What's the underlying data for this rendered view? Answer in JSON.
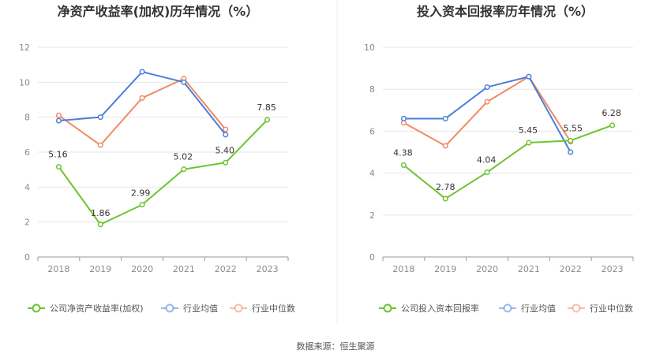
{
  "source_label": "数据来源：恒生聚源",
  "colors": {
    "company": "#6cc42f",
    "avg": "#4a7fdc",
    "median": "#f08a63"
  },
  "chart_data": [
    {
      "type": "line",
      "title": "净资产收益率(加权)历年情况（%）",
      "categories": [
        "2018",
        "2019",
        "2020",
        "2021",
        "2022",
        "2023"
      ],
      "ylim": [
        0,
        12
      ],
      "yticks": [
        "0",
        "2",
        "4",
        "6",
        "8",
        "10",
        "12"
      ],
      "grid": true,
      "legend_position": "bottom",
      "series": [
        {
          "name": "公司净资产收益率(加权)",
          "key": "company",
          "values": [
            5.16,
            1.86,
            2.99,
            5.02,
            5.4,
            7.85
          ],
          "labels": [
            "5.16",
            "1.86",
            "2.99",
            "5.02",
            "5.40",
            "7.85"
          ]
        },
        {
          "name": "行业均值",
          "key": "avg",
          "values": [
            7.8,
            8.0,
            10.6,
            10.0,
            7.0,
            null
          ]
        },
        {
          "name": "行业中位数",
          "key": "median",
          "values": [
            8.1,
            6.4,
            9.1,
            10.2,
            7.3,
            null
          ]
        }
      ]
    },
    {
      "type": "line",
      "title": "投入资本回报率历年情况（%）",
      "categories": [
        "2018",
        "2019",
        "2020",
        "2021",
        "2022",
        "2023"
      ],
      "ylim": [
        0,
        10
      ],
      "yticks": [
        "0",
        "2",
        "4",
        "6",
        "8",
        "10"
      ],
      "grid": true,
      "legend_position": "bottom",
      "series": [
        {
          "name": "公司投入资本回报率",
          "key": "company",
          "values": [
            4.38,
            2.78,
            4.04,
            5.45,
            5.55,
            6.28
          ],
          "labels": [
            "4.38",
            "2.78",
            "4.04",
            "5.45",
            "5.55",
            "6.28"
          ]
        },
        {
          "name": "行业均值",
          "key": "avg",
          "values": [
            6.6,
            6.6,
            8.1,
            8.6,
            5.0,
            null
          ]
        },
        {
          "name": "行业中位数",
          "key": "median",
          "values": [
            6.4,
            5.3,
            7.4,
            8.6,
            5.5,
            null
          ]
        }
      ]
    }
  ]
}
